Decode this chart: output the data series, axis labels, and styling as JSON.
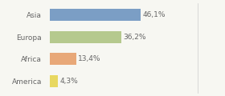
{
  "categories": [
    "Asia",
    "Europa",
    "Africa",
    "America"
  ],
  "values": [
    46.1,
    36.2,
    13.4,
    4.3
  ],
  "labels": [
    "46,1%",
    "36,2%",
    "13,4%",
    "4,3%"
  ],
  "bar_colors": [
    "#7b9ec5",
    "#b5c98e",
    "#e8a878",
    "#e8d860"
  ],
  "background_color": "#f7f7f2",
  "text_color": "#666666",
  "figsize": [
    2.8,
    1.2
  ],
  "dpi": 100,
  "xlim": [
    0,
    75
  ],
  "bar_height": 0.55,
  "label_fontsize": 6.5,
  "tick_fontsize": 6.5
}
